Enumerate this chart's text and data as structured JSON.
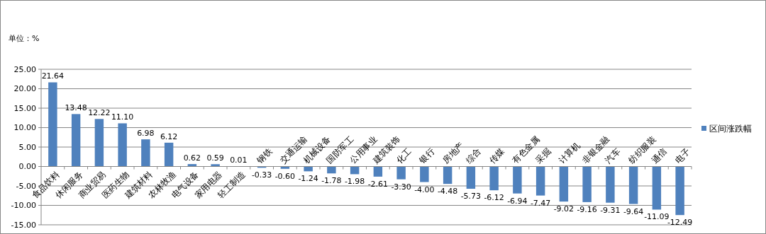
{
  "chart_data": {
    "type": "bar",
    "annotations": [
      "单位：%"
    ],
    "categories": [
      "食品饮料",
      "休闲服务",
      "商业贸易",
      "医药生物",
      "建筑材料",
      "农林牧渔",
      "电气设备",
      "家用电器",
      "轻工制造",
      "钢铁",
      "交通运输",
      "机械设备",
      "国防军工",
      "公用事业",
      "建筑装饰",
      "化工",
      "银行",
      "房地产",
      "综合",
      "传媒",
      "有色金属",
      "采掘",
      "计算机",
      "非银金融",
      "汽车",
      "纺织服装",
      "通信",
      "电子"
    ],
    "series": [
      {
        "name": "区间涨跌幅",
        "color": "#4f81bd",
        "values": [
          21.64,
          13.48,
          12.22,
          11.1,
          6.98,
          6.12,
          0.62,
          0.59,
          0.01,
          -0.33,
          -0.6,
          -1.24,
          -1.78,
          -1.98,
          -2.61,
          -3.3,
          -4.0,
          -4.48,
          -5.73,
          -6.12,
          -6.94,
          -7.47,
          -9.02,
          -9.16,
          -9.31,
          -9.64,
          -11.09,
          -12.49
        ]
      }
    ],
    "value_labels": [
      "21.64",
      "13.48",
      "12.22",
      "11.10",
      "6.98",
      "6.12",
      "0.62",
      "0.59",
      "0.01",
      "-0.33",
      "-0.60",
      "-1.24",
      "-1.78",
      "-1.98",
      "-2.61",
      "-3.30",
      "-4.00",
      "-4.48",
      "-5.73",
      "-6.12",
      "-6.94",
      "-7.47",
      "-9.02",
      "-9.16",
      "-9.31",
      "-9.64",
      "-11.09",
      "-12.49"
    ],
    "ylim": [
      -15,
      25
    ],
    "yticks": [
      {
        "value": -15,
        "label": "-15.00"
      },
      {
        "value": -10,
        "label": "-10.00"
      },
      {
        "value": -5,
        "label": "-5.00"
      },
      {
        "value": 0,
        "label": "0.00"
      },
      {
        "value": 5,
        "label": "5.00"
      },
      {
        "value": 10,
        "label": "10.00"
      },
      {
        "value": 15,
        "label": "15.00"
      },
      {
        "value": 20,
        "label": "20.00"
      },
      {
        "value": 25,
        "label": "25.00"
      }
    ],
    "grid": "y",
    "legend": "right"
  }
}
